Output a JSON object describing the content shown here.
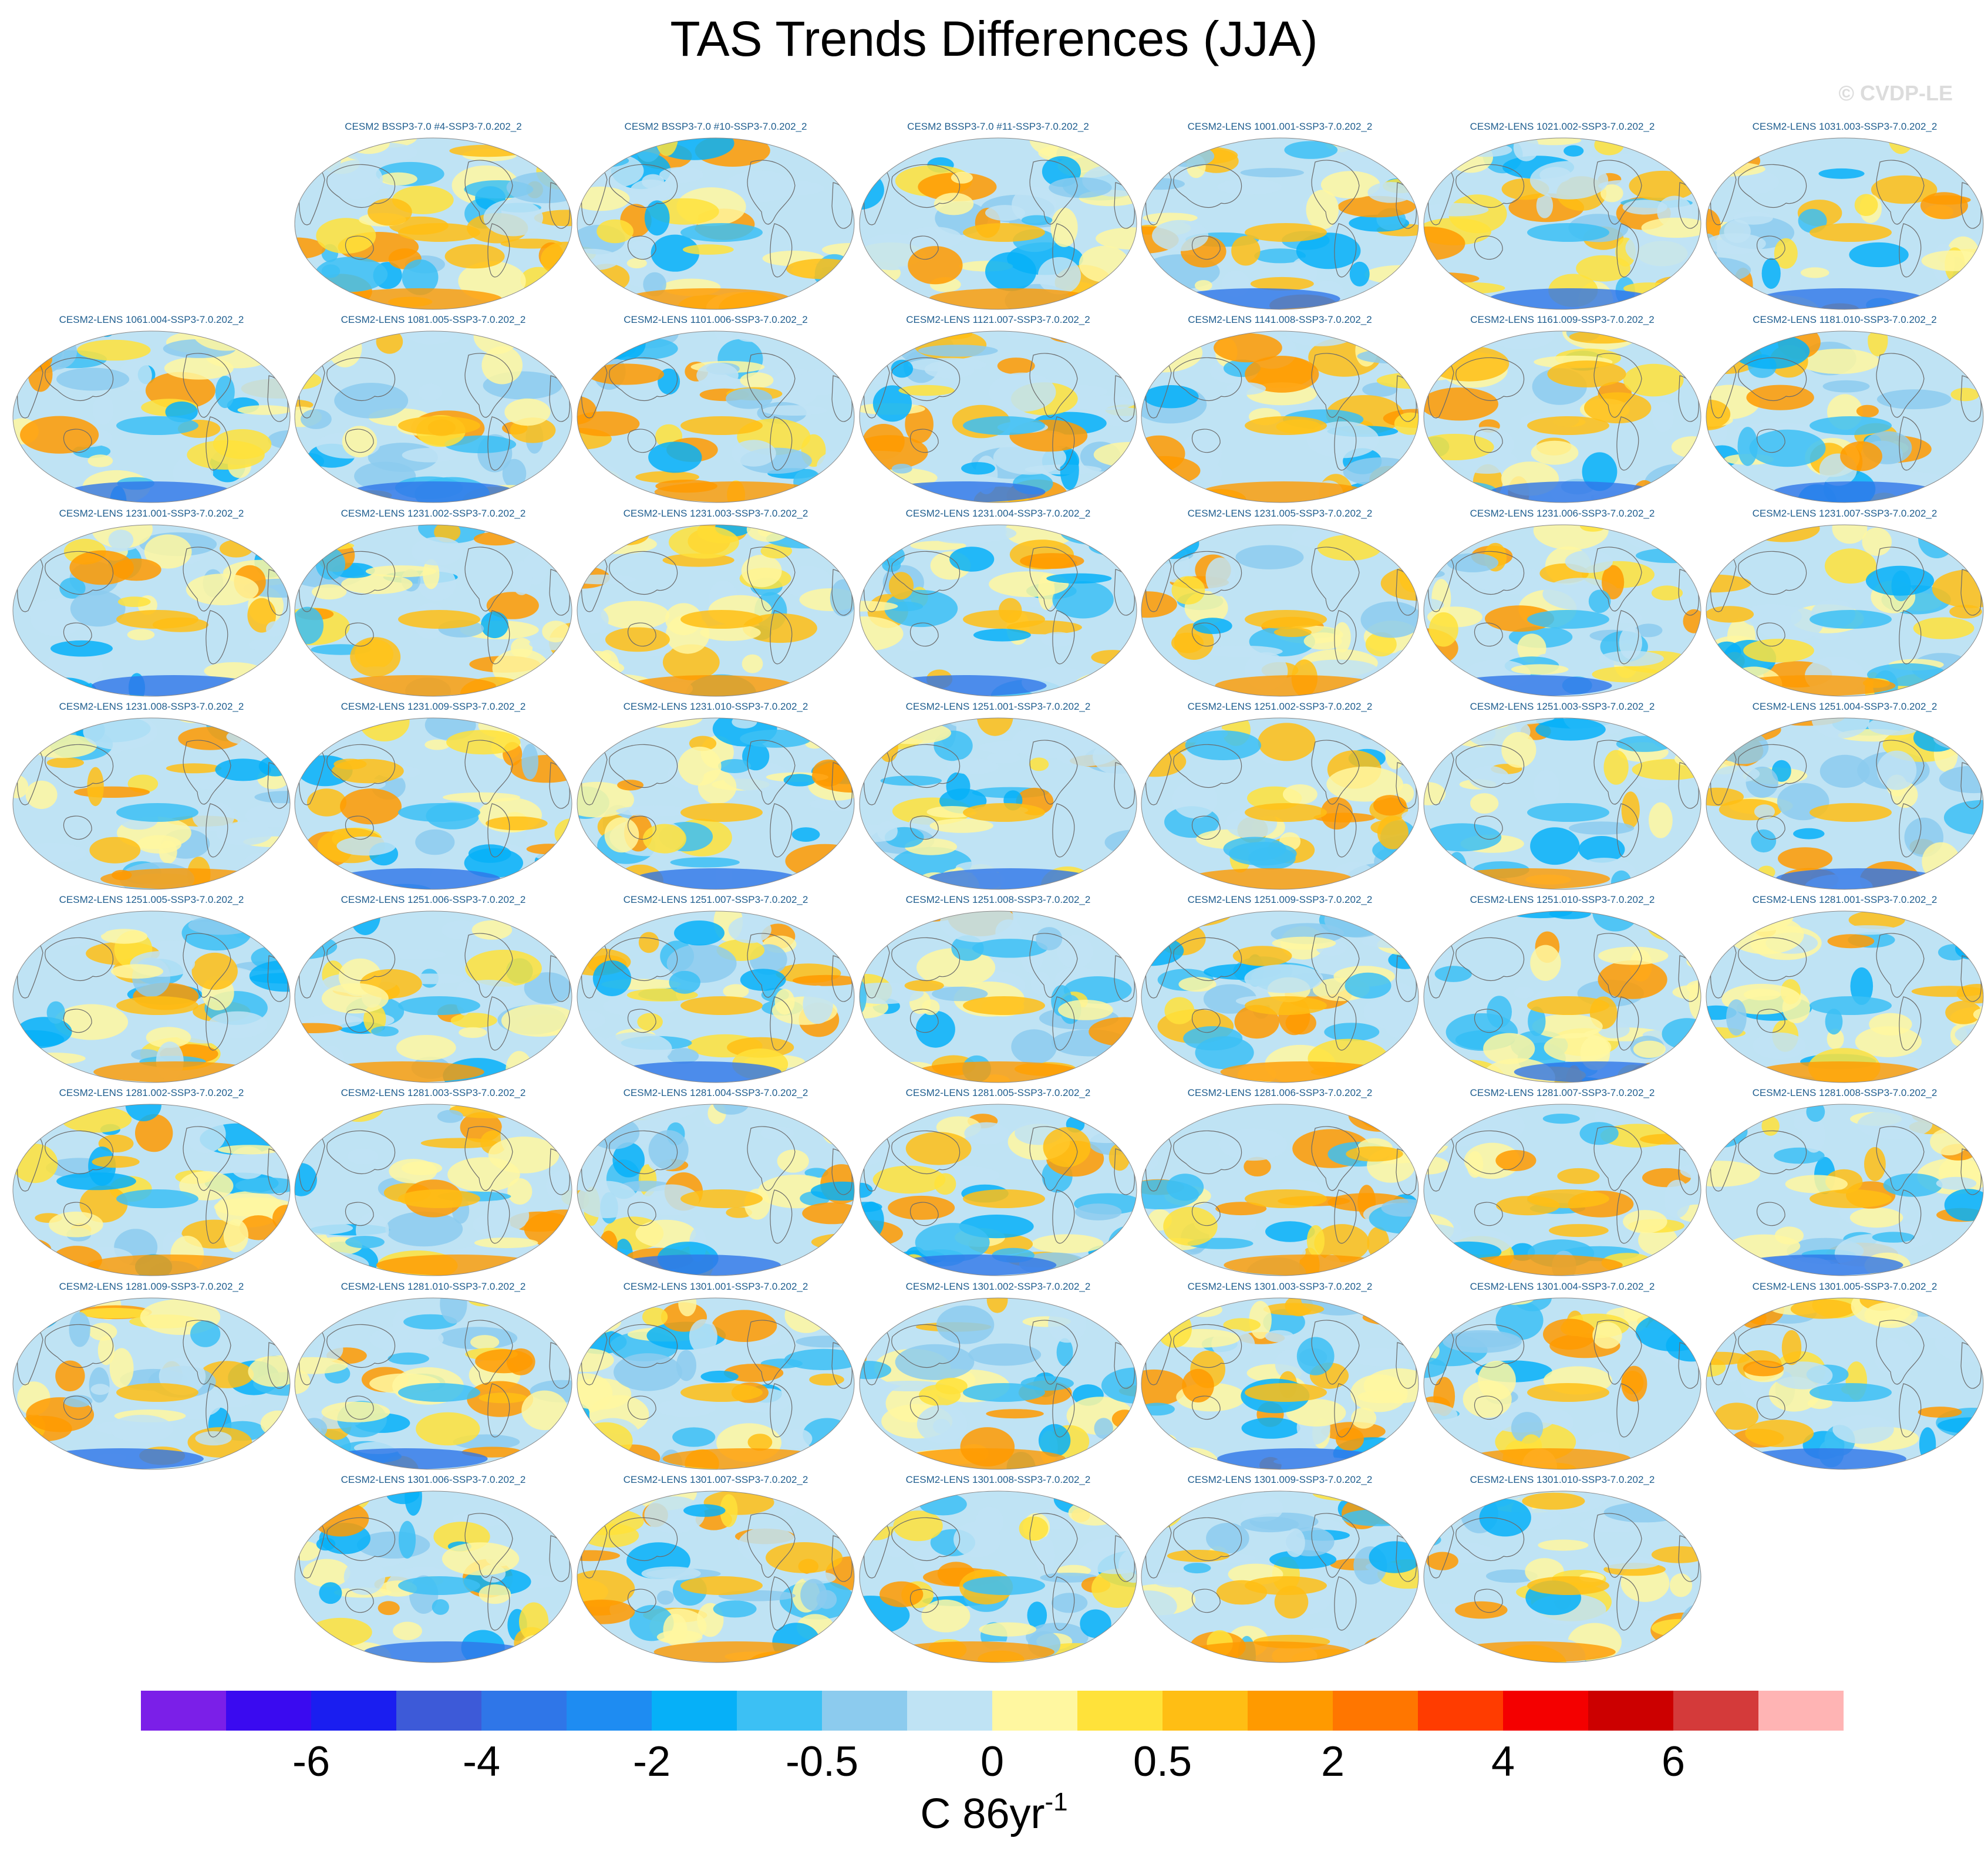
{
  "title": "TAS Trends Differences (JJA)",
  "watermark": "© CVDP-LE",
  "chart_data": {
    "type": "heatmap",
    "title": "TAS Trends Differences (JJA)",
    "projection": "Robinson global maps (one per ensemble member)",
    "panels": [
      "CESM2 BSSP3-7.0 #4-SSP3-7.0.202_2",
      "CESM2 BSSP3-7.0 #10-SSP3-7.0.202_2",
      "CESM2 BSSP3-7.0 #11-SSP3-7.0.202_2",
      "CESM2-LENS 1001.001-SSP3-7.0.202_2",
      "CESM2-LENS 1021.002-SSP3-7.0.202_2",
      "CESM2-LENS 1031.003-SSP3-7.0.202_2",
      "CESM2-LENS 1061.004-SSP3-7.0.202_2",
      "CESM2-LENS 1081.005-SSP3-7.0.202_2",
      "CESM2-LENS 1101.006-SSP3-7.0.202_2",
      "CESM2-LENS 1121.007-SSP3-7.0.202_2",
      "CESM2-LENS 1141.008-SSP3-7.0.202_2",
      "CESM2-LENS 1161.009-SSP3-7.0.202_2",
      "CESM2-LENS 1181.010-SSP3-7.0.202_2",
      "CESM2-LENS 1231.001-SSP3-7.0.202_2",
      "CESM2-LENS 1231.002-SSP3-7.0.202_2",
      "CESM2-LENS 1231.003-SSP3-7.0.202_2",
      "CESM2-LENS 1231.004-SSP3-7.0.202_2",
      "CESM2-LENS 1231.005-SSP3-7.0.202_2",
      "CESM2-LENS 1231.006-SSP3-7.0.202_2",
      "CESM2-LENS 1231.007-SSP3-7.0.202_2",
      "CESM2-LENS 1231.008-SSP3-7.0.202_2",
      "CESM2-LENS 1231.009-SSP3-7.0.202_2",
      "CESM2-LENS 1231.010-SSP3-7.0.202_2",
      "CESM2-LENS 1251.001-SSP3-7.0.202_2",
      "CESM2-LENS 1251.002-SSP3-7.0.202_2",
      "CESM2-LENS 1251.003-SSP3-7.0.202_2",
      "CESM2-LENS 1251.004-SSP3-7.0.202_2",
      "CESM2-LENS 1251.005-SSP3-7.0.202_2",
      "CESM2-LENS 1251.006-SSP3-7.0.202_2",
      "CESM2-LENS 1251.007-SSP3-7.0.202_2",
      "CESM2-LENS 1251.008-SSP3-7.0.202_2",
      "CESM2-LENS 1251.009-SSP3-7.0.202_2",
      "CESM2-LENS 1251.010-SSP3-7.0.202_2",
      "CESM2-LENS 1281.001-SSP3-7.0.202_2",
      "CESM2-LENS 1281.002-SSP3-7.0.202_2",
      "CESM2-LENS 1281.003-SSP3-7.0.202_2",
      "CESM2-LENS 1281.004-SSP3-7.0.202_2",
      "CESM2-LENS 1281.005-SSP3-7.0.202_2",
      "CESM2-LENS 1281.006-SSP3-7.0.202_2",
      "CESM2-LENS 1281.007-SSP3-7.0.202_2",
      "CESM2-LENS 1281.008-SSP3-7.0.202_2",
      "CESM2-LENS 1281.009-SSP3-7.0.202_2",
      "CESM2-LENS 1281.010-SSP3-7.0.202_2",
      "CESM2-LENS 1301.001-SSP3-7.0.202_2",
      "CESM2-LENS 1301.002-SSP3-7.0.202_2",
      "CESM2-LENS 1301.003-SSP3-7.0.202_2",
      "CESM2-LENS 1301.004-SSP3-7.0.202_2",
      "CESM2-LENS 1301.005-SSP3-7.0.202_2",
      "CESM2-LENS 1301.006-SSP3-7.0.202_2",
      "CESM2-LENS 1301.007-SSP3-7.0.202_2",
      "CESM2-LENS 1301.008-SSP3-7.0.202_2",
      "CESM2-LENS 1301.009-SSP3-7.0.202_2",
      "CESM2-LENS 1301.010-SSP3-7.0.202_2"
    ],
    "colorbar": {
      "colors": [
        "#7b1fe8",
        "#3a0af0",
        "#1a1ef0",
        "#3d5ad8",
        "#2f76e8",
        "#1e8cf2",
        "#06b0f8",
        "#3cc0f4",
        "#8ccbee",
        "#bfe3f4",
        "#fff7a0",
        "#ffe23a",
        "#ffbe14",
        "#ff9a00",
        "#ff7600",
        "#ff3c00",
        "#f40000",
        "#cc0000",
        "#d43a3a",
        "#ffb4b4"
      ],
      "tick_labels": [
        "-6",
        "-4",
        "-2",
        "-0.5",
        "0",
        "0.5",
        "2",
        "4",
        "6"
      ],
      "tick_boundaries": [
        2,
        4,
        6,
        8,
        10,
        12,
        14,
        16,
        18
      ],
      "units": "C 86yr",
      "units_superscript": "-1"
    }
  }
}
